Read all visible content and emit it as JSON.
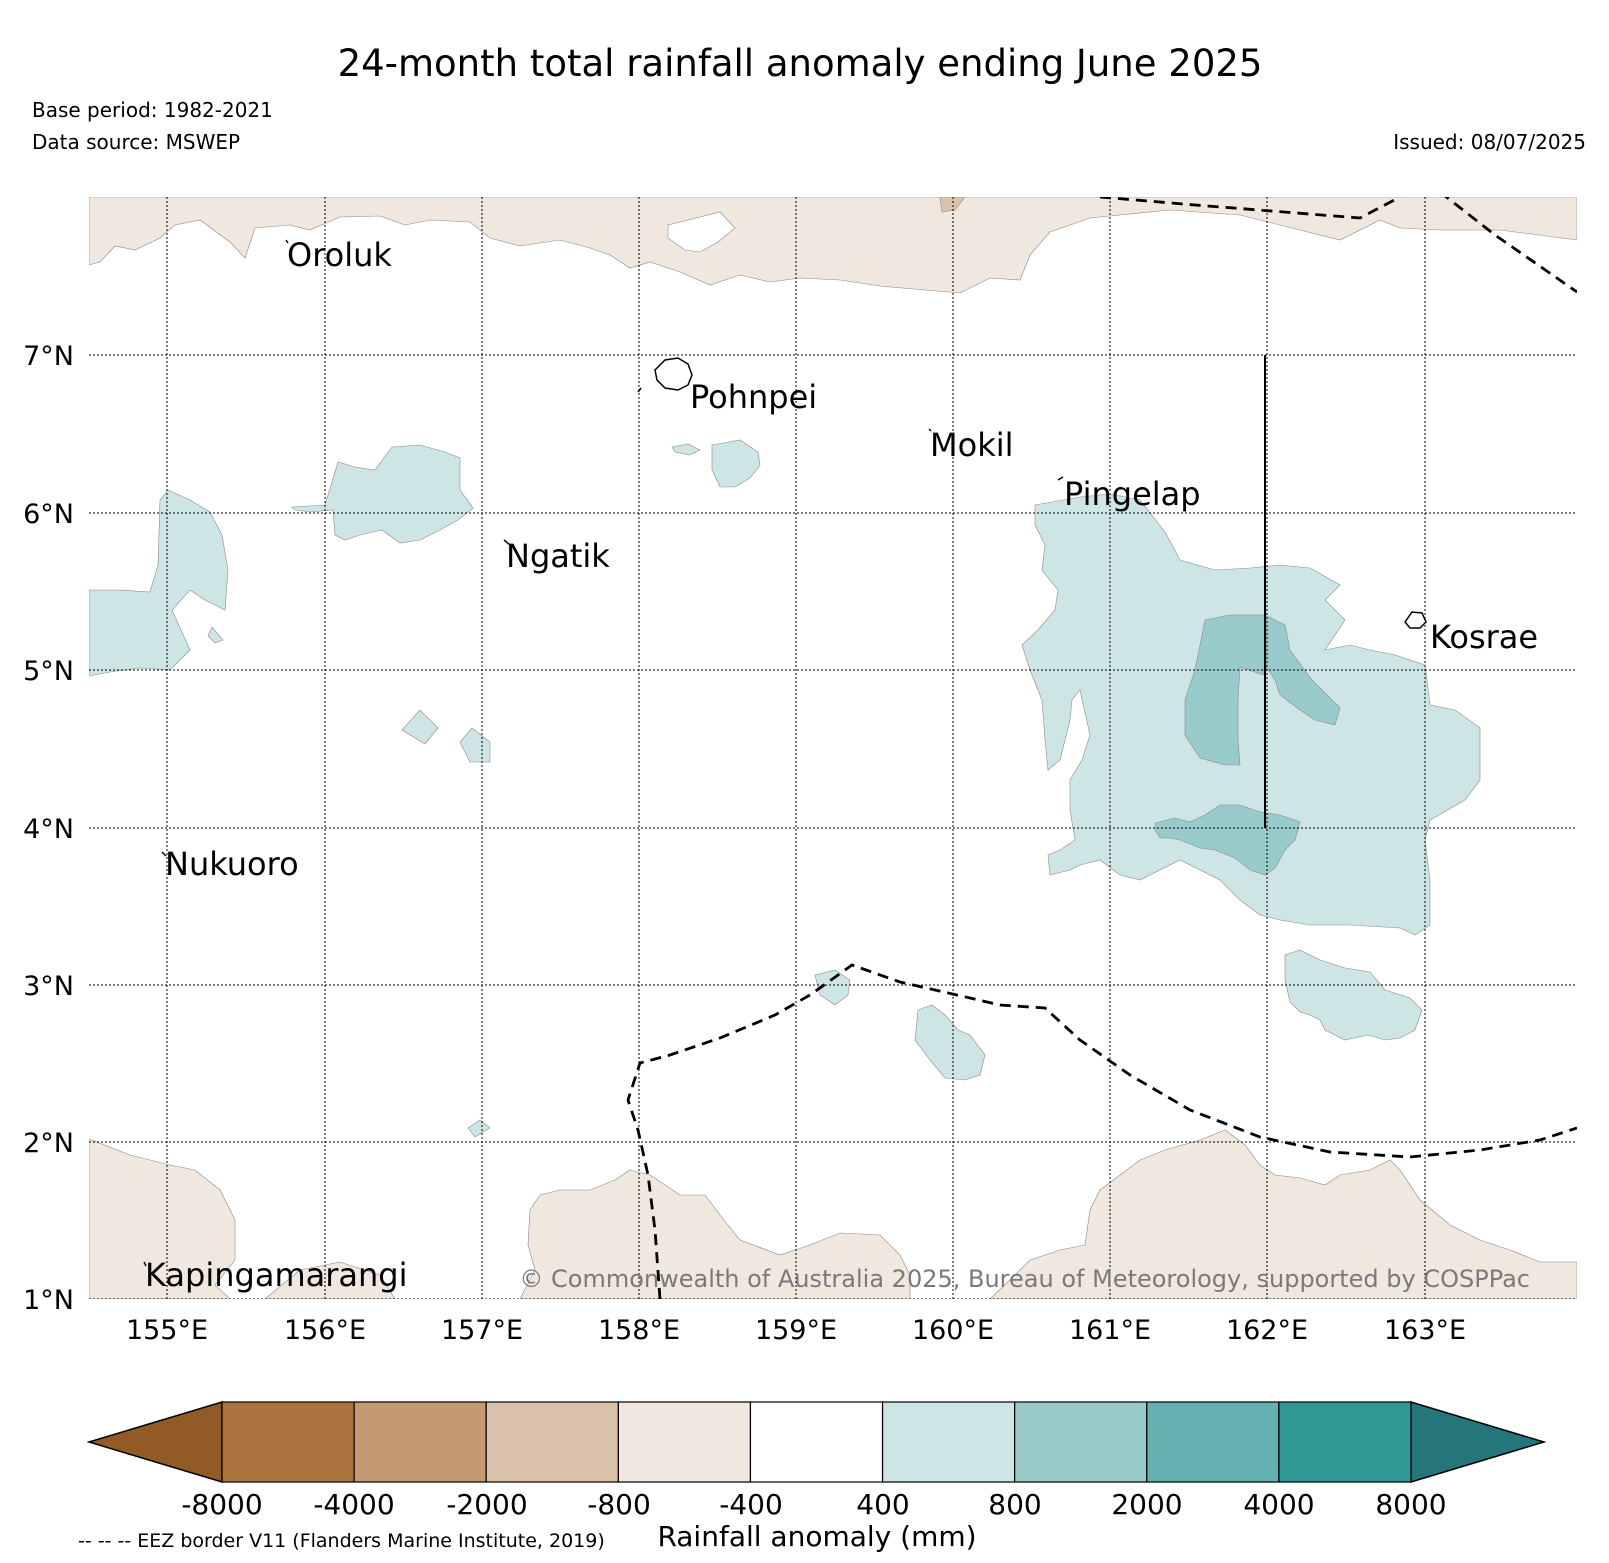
{
  "title": "24-month total rainfall anomaly ending June 2025",
  "base_period": "Base period: 1982-2021",
  "data_source": "Data source: MSWEP",
  "issued": "Issued: 08/07/2025",
  "copyright": "© Commonwealth of Australia 2025, Bureau of Meteorology, supported by COSPPac",
  "footnote": "-- -- -- EEZ border V11 (Flanders Marine Institute, 2019)",
  "map": {
    "lon_range": [
      154.5,
      164.0
    ],
    "lat_range": [
      1.0,
      8.0
    ],
    "grid": true,
    "x_ticks": [
      "155°E",
      "156°E",
      "157°E",
      "158°E",
      "159°E",
      "160°E",
      "161°E",
      "162°E",
      "163°E"
    ],
    "y_ticks": [
      "1°N",
      "2°N",
      "3°N",
      "4°N",
      "5°N",
      "6°N",
      "7°N"
    ],
    "places": [
      "Oroluk",
      "Pohnpei",
      "Mokil",
      "Pingelap",
      "Ngatik",
      "Kosrae",
      "Nukuoro",
      "Kapingamarangi"
    ]
  },
  "colorbar": {
    "label": "Rainfall anomaly (mm)",
    "tick_labels": [
      "-8000",
      "-4000",
      "-2000",
      "-800",
      "-400",
      "400",
      "800",
      "2000",
      "4000",
      "8000"
    ],
    "colors": [
      "#925b25",
      "#ab743e",
      "#c39a72",
      "#dbc3ab",
      "#f0e7de",
      "#ffffff",
      "#cde6e5",
      "#9acbcb",
      "#65b0b0",
      "#2f9894",
      "#24767a"
    ]
  },
  "colors": {
    "dry_light": "#f0e7de",
    "dry_medium": "#dbc3ab",
    "wet_light": "#cde6e5",
    "wet_medium": "#9acbcb"
  }
}
